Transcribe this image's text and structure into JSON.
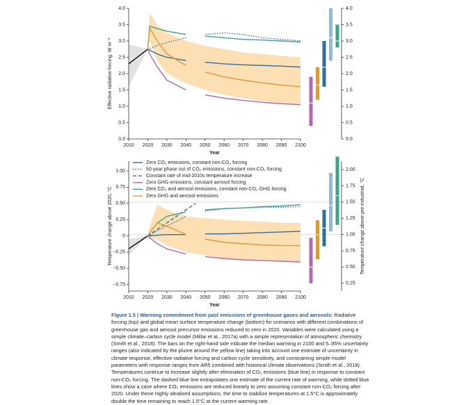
{
  "chart_data": [
    {
      "type": "line",
      "xlabel": "Year",
      "ylabel": "Effective radiative forcing, W m⁻²",
      "x": [
        2010,
        2020,
        2021,
        2025,
        2030,
        2040,
        2045,
        2050,
        2060,
        2070,
        2080,
        2090,
        2100
      ],
      "xlim": [
        2010,
        2100
      ],
      "xticks": [
        2010,
        2020,
        2030,
        2040,
        2050,
        2060,
        2070,
        2080,
        2090,
        2100
      ],
      "ylim": [
        0,
        4
      ],
      "yticks": [
        {
          "value": 0,
          "label": "0.0"
        },
        0.5,
        {
          "value": 1,
          "label": "1.0"
        },
        1.5,
        {
          "value": 2,
          "label": "2.0"
        },
        2.5,
        {
          "value": 3,
          "label": "3.0"
        },
        3.5,
        {
          "value": 4,
          "label": "4.0"
        }
      ],
      "y2lim": [
        0,
        4
      ],
      "y2ticks": [
        {
          "value": 0,
          "label": "0.0"
        },
        0.5,
        {
          "value": 1,
          "label": "1.0"
        },
        1.5,
        {
          "value": 2,
          "label": "2.0"
        },
        2.5,
        {
          "value": 3,
          "label": "3.0"
        },
        3.5,
        {
          "value": 4,
          "label": "4.0"
        }
      ],
      "bands": [
        {
          "color": "#dddddd",
          "upper": [
            2.9,
            2.75,
            null,
            null,
            null,
            null,
            null,
            null,
            null,
            null,
            null,
            null,
            null
          ],
          "lower": [
            1.6,
            2.75,
            null,
            null,
            null,
            null,
            null,
            null,
            null,
            null,
            null,
            null,
            null
          ]
        },
        {
          "color": "#fcd9a6",
          "upper": [
            null,
            2.75,
            3.85,
            3.5,
            3.25,
            3.0,
            null,
            2.85,
            2.75,
            2.65,
            2.6,
            2.55,
            2.5
          ],
          "lower": [
            null,
            2.75,
            3.0,
            2.4,
            2.0,
            1.7,
            null,
            1.5,
            1.35,
            1.25,
            1.15,
            1.1,
            1.05
          ]
        }
      ],
      "series": [
        {
          "color": "#000000",
          "values": [
            2.3,
            2.75,
            null,
            null,
            null,
            null,
            null,
            null,
            null,
            null,
            null,
            null,
            null
          ]
        },
        {
          "color": "#2f6ea5",
          "values": [
            null,
            2.75,
            2.72,
            2.6,
            2.5,
            2.4,
            null,
            2.35,
            2.3,
            2.27,
            2.25,
            2.23,
            2.2
          ]
        },
        {
          "color": "#2f6ea5",
          "dash": "dotted",
          "values": [
            null,
            2.75,
            2.77,
            2.86,
            2.95,
            3.1,
            null,
            3.2,
            3.25,
            3.2,
            3.1,
            3.05,
            3.0
          ]
        },
        {
          "color": "#b46ab2",
          "values": [
            null,
            2.75,
            2.6,
            2.2,
            1.8,
            1.5,
            null,
            1.35,
            1.25,
            1.18,
            1.12,
            1.08,
            1.05
          ]
        },
        {
          "color": "#3aa58a",
          "values": [
            null,
            2.75,
            3.45,
            3.38,
            3.3,
            3.2,
            null,
            3.15,
            3.1,
            3.05,
            3.03,
            3.0,
            2.97
          ]
        },
        {
          "color": "#e09a30",
          "values": [
            null,
            2.75,
            3.4,
            3.0,
            2.6,
            2.25,
            null,
            2.05,
            1.9,
            1.8,
            1.72,
            1.65,
            1.6
          ]
        }
      ],
      "range_bars": [
        {
          "color": "#b46ab2",
          "low": 0.4,
          "high": 1.9,
          "median": 1.1
        },
        {
          "color": "#e09a30",
          "low": 1.2,
          "high": 2.2,
          "median": 1.65
        },
        {
          "color": "#2f6ea5",
          "low": 1.6,
          "high": 3.0,
          "median": 2.2
        },
        {
          "color": "#8cbcdc",
          "low": 2.4,
          "high": 4.0,
          "median": 3.1
        },
        {
          "color": "#3aa58a",
          "low": 2.8,
          "high": 3.5,
          "median": 3.0
        }
      ]
    },
    {
      "type": "line",
      "xlabel": "Year",
      "ylabel": "Temperature change above 2020, °C",
      "y2label": "Temperature change above pre-industrial, °C",
      "x": [
        2010,
        2020,
        2021,
        2025,
        2030,
        2040,
        2045,
        2050,
        2060,
        2070,
        2080,
        2090,
        2100
      ],
      "xlim": [
        2010,
        2100
      ],
      "xticks": [
        2010,
        2020,
        2030,
        2040,
        2050,
        2060,
        2070,
        2080,
        2090,
        2100
      ],
      "ylim": [
        -0.85,
        1.15
      ],
      "yticks": [
        {
          "value": -0.75,
          "label": "−0.75"
        },
        {
          "value": -0.5,
          "label": "−0.50"
        },
        {
          "value": -0.25,
          "label": "−0.25"
        },
        0,
        0.25,
        {
          "value": 0.5,
          "label": "0.50"
        },
        0.75,
        {
          "value": 1,
          "label": "1.00"
        }
      ],
      "y2lim": [
        0.13,
        2.13
      ],
      "y2ticks": [
        0.25,
        {
          "value": 0.5,
          "label": "0.50"
        },
        0.75,
        {
          "value": 1,
          "label": "1.00"
        },
        1.25,
        {
          "value": 1.5,
          "label": "1.50"
        },
        1.75,
        {
          "value": 2,
          "label": "2.00"
        }
      ],
      "ref_lines_y2": [
        1.0,
        1.5
      ],
      "legend": "upper left",
      "bands": [
        {
          "color": "#dddddd",
          "upper": [
            -0.05,
            0,
            null,
            null,
            null,
            null,
            null,
            null,
            null,
            null,
            null,
            null,
            null
          ],
          "lower": [
            -0.3,
            0,
            null,
            null,
            null,
            null,
            null,
            null,
            null,
            null,
            null,
            null,
            null
          ]
        },
        {
          "color": "#fcd9a6",
          "upper": [
            null,
            0,
            0.15,
            0.48,
            0.4,
            0.3,
            null,
            0.27,
            0.25,
            0.23,
            0.22,
            0.2,
            0.2
          ],
          "lower": [
            null,
            0,
            -0.03,
            -0.06,
            -0.15,
            -0.25,
            null,
            -0.3,
            -0.35,
            -0.37,
            -0.38,
            -0.4,
            -0.42
          ]
        }
      ],
      "series": [
        {
          "color": "#000000",
          "values": [
            -0.2,
            0,
            null,
            null,
            null,
            null,
            null,
            null,
            null,
            null,
            null,
            null,
            null
          ]
        },
        {
          "name": "Zero CO₂ emissions, constant non-CO₂ forcing",
          "color": "#2f6ea5",
          "values": [
            null,
            0,
            0.0,
            0.01,
            0.02,
            0.02,
            null,
            0.03,
            0.03,
            0.04,
            0.05,
            0.06,
            0.07
          ]
        },
        {
          "name": "50-year phase out of CO₂ emissions, constant non-CO₂ forcing",
          "color": "#2f6ea5",
          "dash": "dotted",
          "values": [
            null,
            0,
            0.01,
            0.08,
            0.15,
            0.3,
            null,
            0.38,
            0.42,
            0.43,
            0.44,
            0.44,
            0.45
          ]
        },
        {
          "name": "Constant rate of mid-2010s temperature increase",
          "color": "#2f6ea5",
          "dash": "dashed",
          "values": [
            null,
            0,
            0.02,
            0.1,
            0.2,
            0.4,
            0.5,
            null,
            null,
            null,
            null,
            null,
            null
          ]
        },
        {
          "name": "Zero GHG emissions, constant aerosol forcing",
          "color": "#b46ab2",
          "values": [
            null,
            0,
            -0.03,
            -0.12,
            -0.2,
            -0.28,
            null,
            -0.32,
            -0.35,
            -0.37,
            -0.38,
            -0.39,
            -0.4
          ]
        },
        {
          "name": "Zero CO₂ and aerosol emissions, constant non-CO₂ GHG forcing",
          "color": "#3aa58a",
          "values": [
            null,
            0,
            0.05,
            0.2,
            0.3,
            0.37,
            null,
            0.4,
            0.42,
            0.43,
            0.45,
            0.46,
            0.48
          ]
        },
        {
          "name": "Zero GHG and aerosol emissions",
          "color": "#e09a30",
          "values": [
            null,
            0,
            0.05,
            0.2,
            0.15,
            0.02,
            null,
            -0.05,
            -0.1,
            -0.12,
            -0.14,
            -0.15,
            -0.15
          ]
        }
      ],
      "range_bars": [
        {
          "color": "#b46ab2",
          "low": 0.25,
          "high": 0.95,
          "median": 0.5
        },
        {
          "color": "#e09a30",
          "low": 0.62,
          "high": 1.22,
          "median": 1.0
        },
        {
          "color": "#2f6ea5",
          "low": 0.82,
          "high": 1.38,
          "median": 1.1
        },
        {
          "color": "#8cbcdc",
          "low": 1.05,
          "high": 1.95,
          "median": 1.45
        },
        {
          "color": "#3aa58a",
          "low": 1.15,
          "high": 2.2,
          "median": 1.6
        }
      ]
    }
  ],
  "caption": {
    "title": "Figure 1.5 | Warming commitment from past emissions of greenhouse gases and aerosols:",
    "text": "Radiative forcing (top) and global mean surface temperature change (bottom) for scenarios with different combinations of greenhouse gas and aerosol precursor emissions reduced to zero in 2020. Variables were calculated using a simple climate–carbon cycle model (Millar et al., 2017a) with a simple representation of atmospheric chemistry (Smith et al., 2018). The bars on the right-hand side indicate the median warming in 2100 and 5–95% uncertainty ranges (also indicated by the plume around the yellow line) taking into account one estimate of uncertainty in climate response, effective radiative forcing and carbon cycle sensitivity, and constraining simple model parameters with response ranges from AR5 combined with historical climate observations (Smith et al., 2018). Temperatures continue to increase slightly after elimination of CO₂ emissions (blue line) in response to constant non-CO₂ forcing. The dashed blue line extrapolates one estimate of the current rate of warming, while dotted blue lines show a case where CO₂ emissions are reduced linearly to zero assuming constant non-CO₂ forcing after 2020. Under these highly idealized assumptions, the time to stabilize temperatures at 1.5°C is approximately double the time remaining to reach 1.5°C at the current warming rate."
  }
}
